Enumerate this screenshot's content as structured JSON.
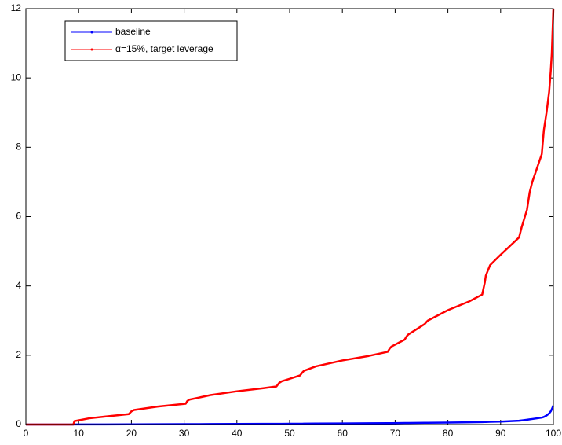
{
  "chart_data": {
    "type": "line",
    "x": [
      0,
      9,
      9.2,
      12,
      15,
      19.5,
      20,
      20.5,
      25,
      30.3,
      30.6,
      31,
      35,
      40,
      45,
      47.5,
      48,
      48.5,
      50,
      52,
      52.4,
      52.7,
      55,
      60,
      65,
      68.6,
      69,
      69.3,
      71.8,
      72.2,
      72.5,
      75.6,
      76,
      76.2,
      80,
      84,
      86.5,
      87,
      87.2,
      88,
      90,
      93.5,
      94,
      95,
      95.5,
      96,
      97.8,
      98.2,
      98.7,
      99.2,
      99.5,
      99.7,
      100
    ],
    "series": [
      {
        "name": "baseline",
        "color": "#0000ff",
        "values": [
          0,
          0,
          0.002,
          0.003,
          0.004,
          0.006,
          0.006,
          0.007,
          0.009,
          0.011,
          0.011,
          0.011,
          0.013,
          0.016,
          0.019,
          0.02,
          0.021,
          0.021,
          0.022,
          0.024,
          0.024,
          0.025,
          0.027,
          0.031,
          0.036,
          0.04,
          0.04,
          0.041,
          0.044,
          0.045,
          0.045,
          0.05,
          0.051,
          0.051,
          0.058,
          0.066,
          0.072,
          0.074,
          0.075,
          0.078,
          0.086,
          0.11,
          0.12,
          0.14,
          0.15,
          0.16,
          0.2,
          0.22,
          0.26,
          0.32,
          0.38,
          0.44,
          0.55
        ]
      },
      {
        "name": "α=15%, target leverage",
        "color": "#ff0000",
        "values": [
          0,
          0,
          0.1,
          0.18,
          0.23,
          0.3,
          0.38,
          0.42,
          0.52,
          0.6,
          0.68,
          0.72,
          0.85,
          0.96,
          1.05,
          1.1,
          1.2,
          1.25,
          1.32,
          1.42,
          1.5,
          1.55,
          1.68,
          1.85,
          1.98,
          2.1,
          2.2,
          2.25,
          2.45,
          2.55,
          2.6,
          2.9,
          2.97,
          3.0,
          3.3,
          3.55,
          3.75,
          4.1,
          4.3,
          4.6,
          4.9,
          5.4,
          5.7,
          6.2,
          6.7,
          7.0,
          7.8,
          8.5,
          9.0,
          9.6,
          10.2,
          10.7,
          12
        ]
      }
    ],
    "xlim": [
      0,
      100
    ],
    "xticks": [
      0,
      10,
      20,
      30,
      40,
      50,
      60,
      70,
      80,
      90,
      100
    ],
    "ylim": [
      0,
      12
    ],
    "yticks": [
      0,
      2,
      4,
      6,
      8,
      10,
      12
    ],
    "legend": "upper-left"
  }
}
